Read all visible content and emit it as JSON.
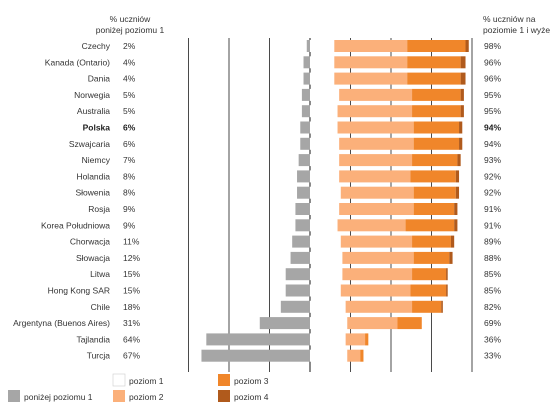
{
  "chart_data": {
    "type": "bar",
    "stacked": true,
    "orientation": "horizontal",
    "header_left": [
      "% uczniów",
      "poniżej poziomu 1"
    ],
    "header_right": [
      "% uczniów na",
      "poziomie 1 i wyżej"
    ],
    "categories": [
      "Czechy",
      "Kanada (Ontario)",
      "Dania",
      "Norwegia",
      "Australia",
      "Polska",
      "Szwajcaria",
      "Niemcy",
      "Holandia",
      "Słowenia",
      "Rosja",
      "Korea Południowa",
      "Chorwacja",
      "Słowacja",
      "Litwa",
      "Hong Kong SAR",
      "Chile",
      "Argentyna (Buenos Aires)",
      "Tajlandia",
      "Turcja"
    ],
    "highlight": "Polska",
    "below_labels": [
      "2%",
      "4%",
      "4%",
      "5%",
      "5%",
      "6%",
      "6%",
      "7%",
      "8%",
      "8%",
      "9%",
      "9%",
      "11%",
      "12%",
      "15%",
      "15%",
      "18%",
      "31%",
      "64%",
      "67%"
    ],
    "above_labels": [
      "98%",
      "96%",
      "96%",
      "95%",
      "95%",
      "94%",
      "94%",
      "93%",
      "92%",
      "92%",
      "91%",
      "91%",
      "89%",
      "88%",
      "85%",
      "85%",
      "82%",
      "69%",
      "36%",
      "33%"
    ],
    "series": [
      {
        "name": "poniżej poziomu 1",
        "color": "#a6a6a6",
        "direction": "left",
        "values": [
          2,
          4,
          4,
          5,
          5,
          6,
          6,
          7,
          8,
          8,
          9,
          9,
          11,
          12,
          15,
          15,
          18,
          31,
          64,
          67
        ]
      },
      {
        "name": "poziom 1",
        "color": "#ffffff",
        "values": [
          15,
          15,
          15,
          18,
          17,
          17,
          18,
          18,
          18,
          19,
          18,
          17,
          19,
          20,
          20,
          19,
          22,
          23,
          22,
          23
        ]
      },
      {
        "name": "poziom 2",
        "color": "#fbb07a",
        "values": [
          45,
          45,
          45,
          45,
          46,
          47,
          46,
          45,
          44,
          45,
          46,
          42,
          44,
          44,
          43,
          43,
          41,
          31,
          12,
          8
        ]
      },
      {
        "name": "poziom 3",
        "color": "#f0862a",
        "values": [
          36,
          33,
          33,
          30,
          30,
          28,
          28,
          28,
          28,
          26,
          25,
          30,
          24,
          22,
          21,
          22,
          18,
          15,
          2,
          2
        ]
      },
      {
        "name": "poziom 4",
        "color": "#b05a1c",
        "values": [
          2,
          3,
          3,
          2,
          2,
          2,
          2,
          2,
          2,
          2,
          2,
          2,
          2,
          2,
          1,
          1,
          1,
          0,
          0,
          0
        ]
      }
    ],
    "xlim": [
      -70,
      100
    ],
    "grid": true
  },
  "legend": {
    "items": [
      {
        "key": "below",
        "label": "poniżej poziomu 1",
        "color": "#a6a6a6"
      },
      {
        "key": "lvl1",
        "label": "poziom 1",
        "color": "#ffffff"
      },
      {
        "key": "lvl2",
        "label": "poziom 2",
        "color": "#fbb07a"
      },
      {
        "key": "lvl3",
        "label": "poziom 3",
        "color": "#f0862a"
      },
      {
        "key": "lvl4",
        "label": "poziom 4",
        "color": "#b05a1c"
      }
    ]
  }
}
